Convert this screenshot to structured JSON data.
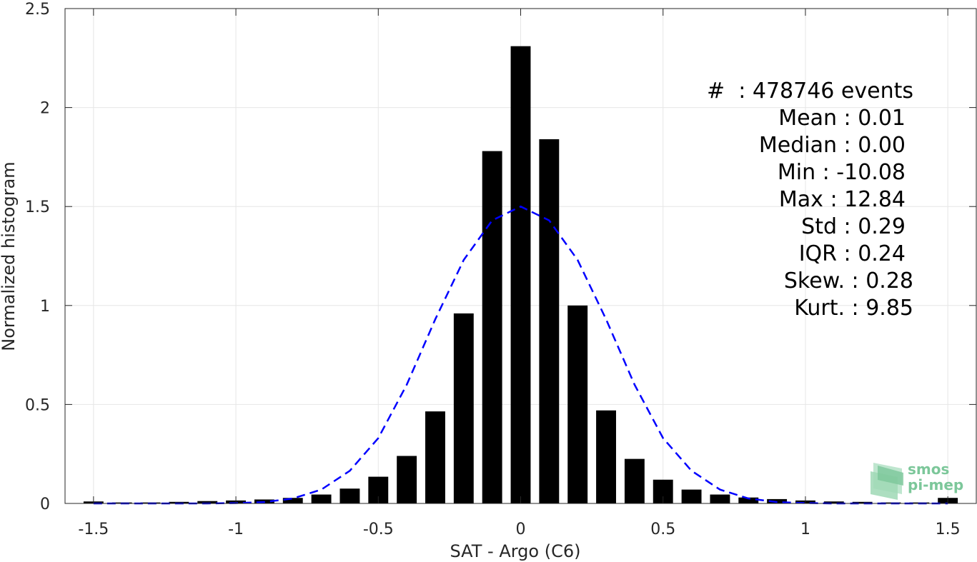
{
  "chart_data": {
    "type": "bar",
    "title": "",
    "xlabel": "SAT - Argo (C6)",
    "ylabel": "Normalized histogram",
    "xlim": [
      -1.6,
      1.6
    ],
    "ylim": [
      0,
      2.5
    ],
    "grid": true,
    "xticks": [
      "-1.5",
      "-1",
      "-0.5",
      "0",
      "0.5",
      "1",
      "1.5"
    ],
    "yticks": [
      "0",
      "0.5",
      "1",
      "1.5",
      "2",
      "2.5"
    ],
    "bar_width": 0.07,
    "x": [
      -1.5,
      -1.4,
      -1.3,
      -1.2,
      -1.1,
      -1.0,
      -0.9,
      -0.8,
      -0.7,
      -0.6,
      -0.5,
      -0.4,
      -0.3,
      -0.2,
      -0.1,
      0.0,
      0.1,
      0.2,
      0.3,
      0.4,
      0.5,
      0.6,
      0.7,
      0.8,
      0.9,
      1.0,
      1.1,
      1.2,
      1.3,
      1.4,
      1.5
    ],
    "values": [
      0.01,
      0.005,
      0.005,
      0.008,
      0.012,
      0.015,
      0.02,
      0.028,
      0.045,
      0.075,
      0.135,
      0.24,
      0.465,
      0.96,
      1.78,
      2.31,
      1.84,
      1.0,
      0.47,
      0.225,
      0.12,
      0.07,
      0.045,
      0.03,
      0.022,
      0.015,
      0.01,
      0.008,
      0.005,
      0.005,
      0.028
    ],
    "fit_curve": {
      "style": "dashed",
      "color": "#0000ff",
      "x": [
        -1.5,
        -1.4,
        -1.3,
        -1.2,
        -1.1,
        -1.0,
        -0.9,
        -0.8,
        -0.7,
        -0.6,
        -0.5,
        -0.4,
        -0.3,
        -0.2,
        -0.1,
        0.0,
        0.1,
        0.2,
        0.3,
        0.4,
        0.5,
        0.6,
        0.7,
        0.8,
        0.9,
        1.0,
        1.1,
        1.2,
        1.3,
        1.4,
        1.5
      ],
      "y": [
        0.0,
        0.0,
        0.0,
        0.0,
        0.0,
        0.002,
        0.007,
        0.025,
        0.07,
        0.165,
        0.33,
        0.6,
        0.93,
        1.23,
        1.43,
        1.5,
        1.43,
        1.23,
        0.93,
        0.6,
        0.33,
        0.165,
        0.07,
        0.025,
        0.007,
        0.002,
        0.0,
        0.0,
        0.0,
        0.0,
        0.0
      ]
    },
    "bar_color": "#000000",
    "stats": [
      "#  : 478746 events",
      "Mean : 0.01",
      "Median : 0.00",
      "Min : -10.08",
      "Max : 12.84",
      "Std : 0.29",
      "IQR : 0.24",
      "Skew. : 0.28",
      "Kurt. : 9.85"
    ]
  },
  "logo": {
    "line1": "smos",
    "line2": "pi-mep"
  }
}
